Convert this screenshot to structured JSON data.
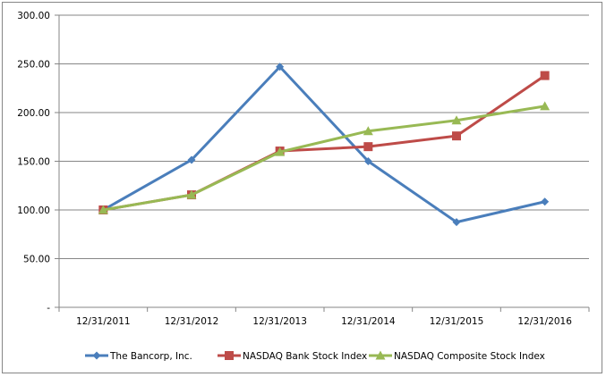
{
  "chart_data": {
    "type": "line",
    "title": "",
    "xlabel": "",
    "ylabel": "",
    "categories": [
      "12/31/2011",
      "12/31/2012",
      "12/31/2013",
      "12/31/2014",
      "12/31/2015",
      "12/31/2016"
    ],
    "y_ticks": [
      "-",
      "50.00",
      "100.00",
      "150.00",
      "200.00",
      "250.00",
      "300.00"
    ],
    "ylim": [
      0,
      300
    ],
    "grid": true,
    "legend_position": "bottom",
    "series": [
      {
        "name": "The Bancorp, Inc.",
        "color": "#4A7EBB",
        "marker": "diamond",
        "values": [
          100.0,
          151.4,
          247.0,
          150.0,
          87.5,
          108.5
        ]
      },
      {
        "name": "NASDAQ Bank Stock Index",
        "color": "#BE4B48",
        "marker": "square",
        "values": [
          100.0,
          115.5,
          160.5,
          165.0,
          176.0,
          238.0
        ]
      },
      {
        "name": "NASDAQ Composite  Stock Index",
        "color": "#98B954",
        "marker": "triangle",
        "values": [
          100.0,
          115.5,
          159.5,
          181.0,
          192.0,
          206.5
        ]
      }
    ]
  }
}
